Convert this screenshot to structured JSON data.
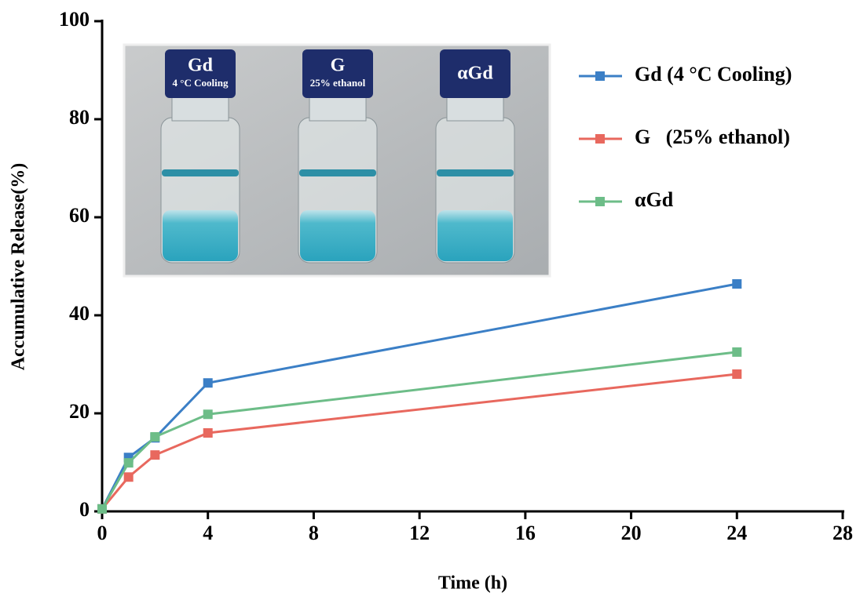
{
  "chart_data": {
    "type": "line",
    "xlabel": "Time (h)",
    "ylabel": "Accumulative Release(%)",
    "x": [
      0,
      1,
      2,
      4,
      24
    ],
    "series": [
      {
        "name": "Gd (4 °C Cooling)",
        "color": "#3b7fc6",
        "values": [
          0.5,
          11.0,
          15.0,
          26.2,
          46.4
        ]
      },
      {
        "name": "G   (25% ethanol)",
        "color": "#e8685e",
        "values": [
          0.5,
          7.0,
          11.5,
          16.0,
          28.0
        ]
      },
      {
        "name": "αGd",
        "color": "#6dbd88",
        "values": [
          0.5,
          9.9,
          15.2,
          19.8,
          32.5
        ]
      }
    ],
    "xlim": [
      0,
      28
    ],
    "xticks": [
      0,
      4,
      8,
      12,
      16,
      20,
      24,
      28
    ],
    "ylim": [
      0,
      100
    ],
    "yticks": [
      0,
      20,
      40,
      60,
      80,
      100
    ],
    "grid": false,
    "legend": "upper right",
    "inset_labels": [
      {
        "main": "Gd",
        "sub": "4 °C Cooling"
      },
      {
        "main": "G",
        "sub": "25% ethanol"
      },
      {
        "main": "αGd"
      }
    ]
  }
}
